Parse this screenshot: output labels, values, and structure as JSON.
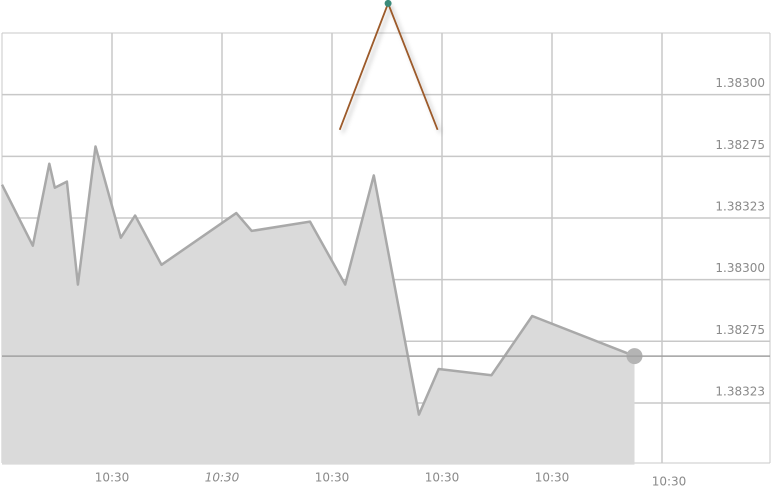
{
  "chart_data": {
    "type": "area",
    "xlim": [
      0,
      7
    ],
    "ylim": [
      0,
      7
    ],
    "xticks": [
      {
        "value": 1,
        "label": "10:30"
      },
      {
        "value": 2,
        "label": "10:30"
      },
      {
        "value": 3,
        "label": "10:30"
      },
      {
        "value": 4,
        "label": "10:30"
      },
      {
        "value": 5,
        "label": "10:30"
      },
      {
        "value": 6,
        "label": "10:30"
      }
    ],
    "yticks": [
      {
        "value": 6,
        "label": "1.38300"
      },
      {
        "value": 5,
        "label": "1.38275"
      },
      {
        "value": 4,
        "label": "1.38323"
      },
      {
        "value": 3,
        "label": "1.38300"
      },
      {
        "value": 2,
        "label": "1.38275"
      },
      {
        "value": 1,
        "label": "1.38323"
      }
    ],
    "grid": true,
    "reference_line": 1.76,
    "series": [
      {
        "style": "area",
        "color": "#a9a9a9",
        "x": [
          0,
          0.28,
          0.43,
          0.48,
          0.59,
          0.69,
          0.85,
          1.08,
          1.21,
          1.45,
          2.13,
          2.27,
          2.8,
          3.12,
          3.38,
          3.79,
          3.97,
          4.45,
          4.82,
          5.75
        ],
        "values": [
          4.54,
          3.55,
          4.88,
          4.49,
          4.59,
          2.92,
          5.16,
          3.68,
          4.04,
          3.24,
          4.08,
          3.79,
          3.94,
          2.92,
          4.69,
          0.81,
          1.55,
          1.45,
          2.41,
          1.76
        ]
      },
      {
        "style": "line",
        "color": "#9c5a2a",
        "x": [
          3.07,
          3.51,
          3.96
        ],
        "values": [
          5.43,
          7.48,
          5.43
        ]
      }
    ]
  }
}
